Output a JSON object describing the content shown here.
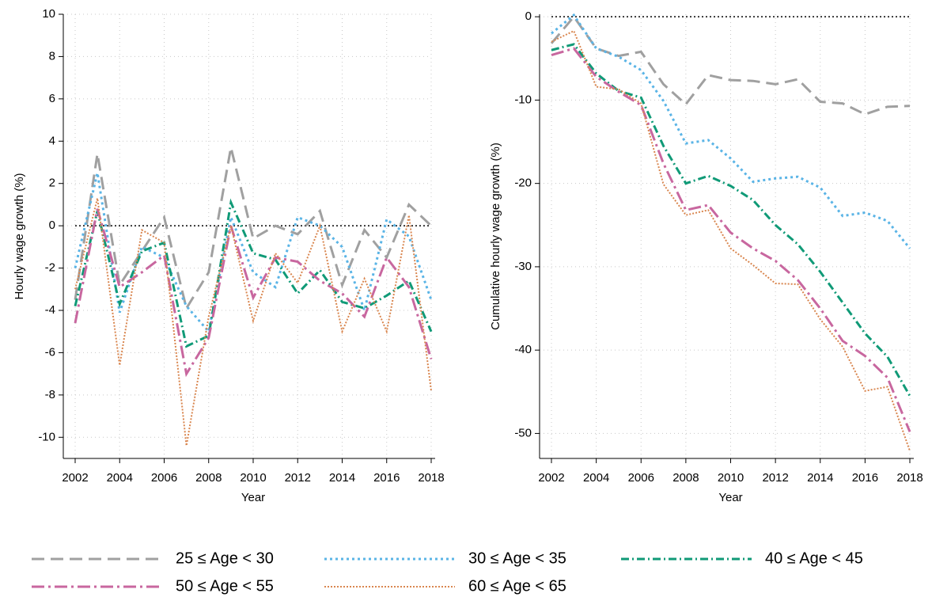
{
  "chart_data": [
    {
      "type": "line",
      "x_label": "Year",
      "y_label": "Hourly wage growth (%)",
      "x": [
        2002,
        2003,
        2004,
        2005,
        2006,
        2007,
        2008,
        2009,
        2010,
        2011,
        2012,
        2013,
        2014,
        2015,
        2016,
        2017,
        2018
      ],
      "xlim": [
        2002,
        2018
      ],
      "xticks": [
        2002,
        2004,
        2006,
        2008,
        2010,
        2012,
        2014,
        2016,
        2018
      ],
      "ylim": [
        -11,
        10
      ],
      "yticks": [
        -10,
        -8,
        -6,
        -4,
        -2,
        0,
        2,
        4,
        6,
        8,
        10
      ],
      "grid": true,
      "reference_line": 0,
      "series": [
        {
          "name": "25 ≤ Age < 30",
          "color": "#a0a0a0",
          "style": "dash",
          "values": [
            -3.5,
            3.4,
            -2.8,
            -1.2,
            0.4,
            -3.9,
            -2.2,
            3.7,
            -0.6,
            0,
            -0.4,
            0.7,
            -2.8,
            -0.2,
            -1.5,
            1.0,
            0
          ]
        },
        {
          "name": "30 ≤ Age < 35",
          "color": "#5ab4e6",
          "style": "dot",
          "values": [
            -2.0,
            2.5,
            -4.1,
            -1.0,
            -1.5,
            -3.8,
            -5.0,
            0.4,
            -2.2,
            -2.9,
            0.4,
            0,
            -1.0,
            -4.0,
            0.3,
            -0.5,
            -3.5
          ]
        },
        {
          "name": "40 ≤ Age < 45",
          "color": "#109a77",
          "style": "dashdot",
          "values": [
            -3.8,
            0.7,
            -3.7,
            -1.2,
            -0.8,
            -5.7,
            -5.2,
            1.1,
            -1.3,
            -1.6,
            -3.2,
            -2.1,
            -3.6,
            -3.9,
            -3.3,
            -2.6,
            -5.0
          ]
        },
        {
          "name": "50 ≤ Age < 55",
          "color": "#c8679f",
          "style": "longdashdot",
          "values": [
            -4.6,
            0.8,
            -2.9,
            -2.2,
            -1.4,
            -7.0,
            -5.3,
            0,
            -3.4,
            -1.5,
            -1.7,
            -2.6,
            -3.2,
            -4.3,
            -1.5,
            -2.9,
            -6.3
          ]
        },
        {
          "name": "60 ≤ Age < 65",
          "color": "#d9864f",
          "style": "shortdot",
          "values": [
            -3.0,
            1.3,
            -6.6,
            -0.2,
            -0.8,
            -10.4,
            -4.3,
            0,
            -4.5,
            -1.3,
            -2.7,
            0,
            -5.0,
            -2.5,
            -5.0,
            0.5,
            -7.8
          ]
        }
      ]
    },
    {
      "type": "line",
      "x_label": "Year",
      "y_label": "Cumulative hourly wage growth (%)",
      "x": [
        2002,
        2003,
        2004,
        2005,
        2006,
        2007,
        2008,
        2009,
        2010,
        2011,
        2012,
        2013,
        2014,
        2015,
        2016,
        2017,
        2018
      ],
      "xlim": [
        2002,
        2018
      ],
      "xticks": [
        2002,
        2004,
        2006,
        2008,
        2010,
        2012,
        2014,
        2016,
        2018
      ],
      "ylim": [
        -53,
        0.3
      ],
      "yticks": [
        -50,
        -40,
        -30,
        -20,
        -10,
        0
      ],
      "grid": true,
      "reference_line": 0,
      "series": [
        {
          "color": "#a0a0a0",
          "style": "dash",
          "values": [
            -3.2,
            0,
            -3.8,
            -4.7,
            -4.2,
            -8.1,
            -10.5,
            -7.0,
            -7.6,
            -7.7,
            -8.1,
            -7.5,
            -10.2,
            -10.4,
            -11.7,
            -10.8,
            -10.7
          ]
        },
        {
          "color": "#5ab4e6",
          "style": "dot",
          "values": [
            -2.0,
            0.2,
            -3.8,
            -4.8,
            -6.4,
            -10.1,
            -15.2,
            -14.8,
            -17.0,
            -19.8,
            -19.4,
            -19.2,
            -20.5,
            -23.9,
            -23.5,
            -24.5,
            -27.8
          ]
        },
        {
          "color": "#109a77",
          "style": "dashdot",
          "values": [
            -4.0,
            -3.3,
            -6.8,
            -8.9,
            -9.7,
            -15.5,
            -20.0,
            -19.1,
            -20.3,
            -22.0,
            -25.0,
            -27.3,
            -30.6,
            -34.3,
            -38.0,
            -40.8,
            -45.5
          ]
        },
        {
          "color": "#c8679f",
          "style": "longdashdot",
          "values": [
            -4.6,
            -3.8,
            -7.2,
            -9.0,
            -10.6,
            -17.6,
            -23.2,
            -22.6,
            -25.9,
            -27.8,
            -29.3,
            -31.6,
            -35.0,
            -38.9,
            -40.7,
            -43.3,
            -49.8
          ]
        },
        {
          "color": "#d9864f",
          "style": "shortdot",
          "values": [
            -3.0,
            -1.7,
            -8.4,
            -8.7,
            -10.4,
            -20.1,
            -23.8,
            -23.2,
            -27.8,
            -29.8,
            -32.0,
            -32.1,
            -36.3,
            -39.6,
            -44.9,
            -44.4,
            -52.1
          ]
        }
      ]
    }
  ]
}
